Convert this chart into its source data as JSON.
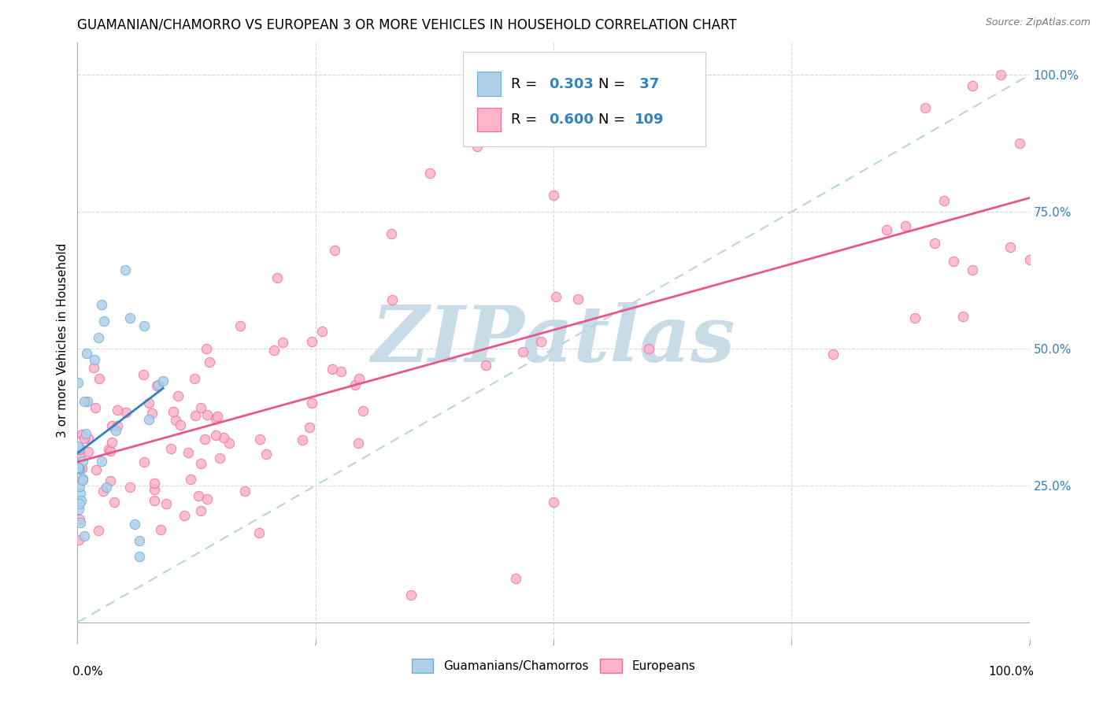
{
  "title": "GUAMANIAN/CHAMORRO VS EUROPEAN 3 OR MORE VEHICLES IN HOUSEHOLD CORRELATION CHART",
  "source": "Source: ZipAtlas.com",
  "ylabel": "3 or more Vehicles in Household",
  "legend_label1": "Guamanians/Chamorros",
  "legend_label2": "Europeans",
  "R1": "0.303",
  "N1": " 37",
  "R2": "0.600",
  "N2": "109",
  "color_blue_fill": "#afd0e8",
  "color_blue_edge": "#6baed6",
  "color_blue_line": "#3182bd",
  "color_pink_fill": "#fbb4c8",
  "color_pink_edge": "#f768a1",
  "color_pink_line": "#e8578a",
  "color_dashed": "#b8d4e8",
  "color_grid": "#d9d9d9",
  "color_rn_blue": "#3182bd",
  "background_color": "#ffffff",
  "watermark": "ZIPatlas",
  "watermark_color": "#c8dce8",
  "xlim": [
    0.0,
    1.0
  ],
  "ylim": [
    0.0,
    1.0
  ],
  "title_fontsize": 12,
  "axis_fontsize": 11,
  "source_fontsize": 9
}
